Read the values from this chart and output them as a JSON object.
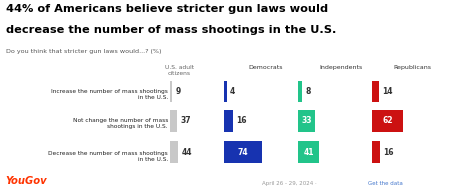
{
  "title_line1": "44% of Americans believe stricter gun laws would",
  "title_line2": "decrease the number of mass shootings in the U.S.",
  "subtitle": "Do you think that stricter gun laws would...? (%)",
  "col_headers": [
    "U.S. adult\ncitizens",
    "Democrats",
    "Independents",
    "Republicans"
  ],
  "row_labels": [
    "Increase the number of mass shootings\nin the U.S.",
    "Not change the number of mass\nshootings in the U.S.",
    "Decrease the number of mass shootings\nin the U.S."
  ],
  "values": {
    "us": [
      9,
      37,
      44
    ],
    "dem": [
      4,
      16,
      74
    ],
    "ind": [
      8,
      33,
      41
    ],
    "rep": [
      14,
      62,
      16
    ]
  },
  "colors": {
    "us": "#c8c8c8",
    "dem": "#1733b0",
    "ind": "#22c48a",
    "rep": "#cc1111"
  },
  "yougov_color": "#ff3300",
  "date_color": "#999999",
  "link_color": "#4477cc",
  "date_text": "April 26 - 29, 2024 · Get the data",
  "background": "#ffffff"
}
